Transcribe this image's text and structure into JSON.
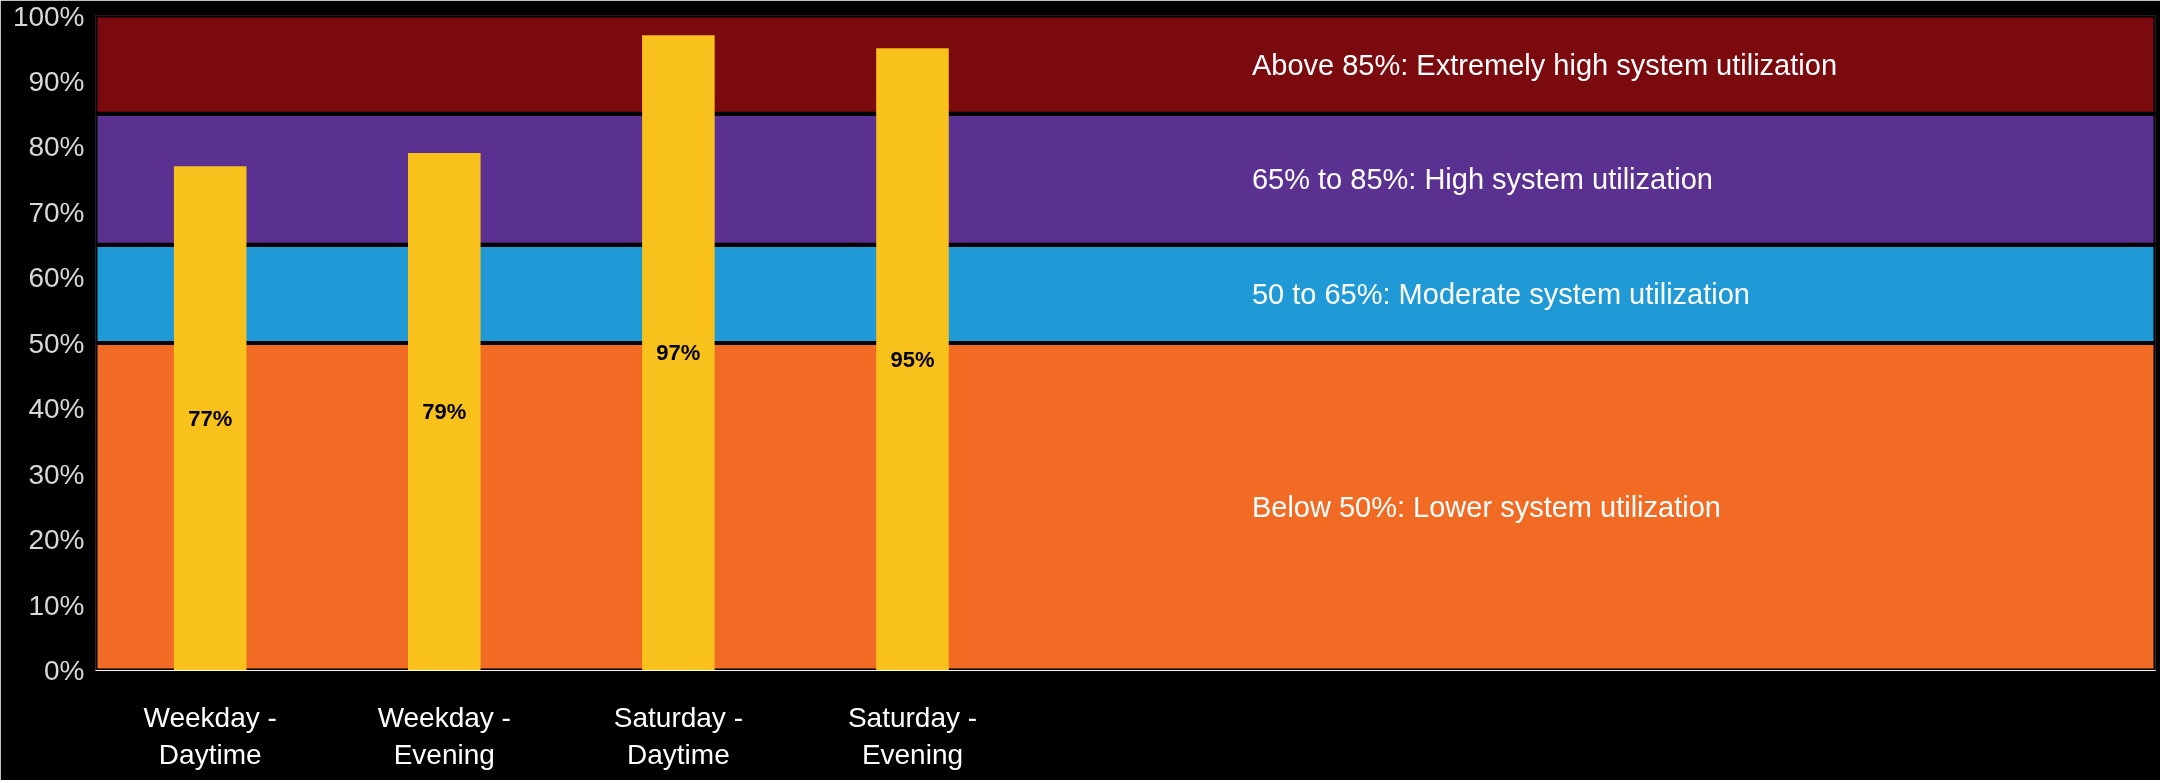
{
  "chart_data": {
    "type": "bar",
    "categories": [
      "Weekday -\nDaytime",
      "Weekday -\nEvening",
      "Saturday -\nDaytime",
      "Saturday -\nEvening"
    ],
    "values": [
      77,
      79,
      97,
      95
    ],
    "color": "#f9c11b",
    "data_labels": true,
    "value_labels": [
      "77%",
      "79%",
      "97%",
      "95%"
    ],
    "ylim": [
      0,
      100
    ],
    "yticks": [
      {
        "value": 0,
        "label": "0%"
      },
      {
        "value": 10,
        "label": "10%"
      },
      {
        "value": 20,
        "label": "20%"
      },
      {
        "value": 30,
        "label": "30%"
      },
      {
        "value": 40,
        "label": "40%"
      },
      {
        "value": 50,
        "label": "50%"
      },
      {
        "value": 60,
        "label": "60%"
      },
      {
        "value": 70,
        "label": "70%"
      },
      {
        "value": 80,
        "label": "80%"
      },
      {
        "value": 90,
        "label": "90%"
      },
      {
        "value": 100,
        "label": "100%"
      }
    ],
    "bands": [
      {
        "axis": "y",
        "from": 0,
        "to": 50,
        "label": "Below 50%: Lower system utilization",
        "color": "#f26b25"
      },
      {
        "axis": "y",
        "from": 50,
        "to": 65,
        "label": "50 to 65%: Moderate system utilization",
        "color": "#1f9ad6"
      },
      {
        "axis": "y",
        "from": 65,
        "to": 85,
        "label": "65% to 85%: High system utilization",
        "color": "#5a3190"
      },
      {
        "axis": "y",
        "from": 85,
        "to": 100,
        "label": "Above 85%: Extremely high system utilization",
        "color": "#7b0a0e"
      }
    ],
    "grid": false
  }
}
